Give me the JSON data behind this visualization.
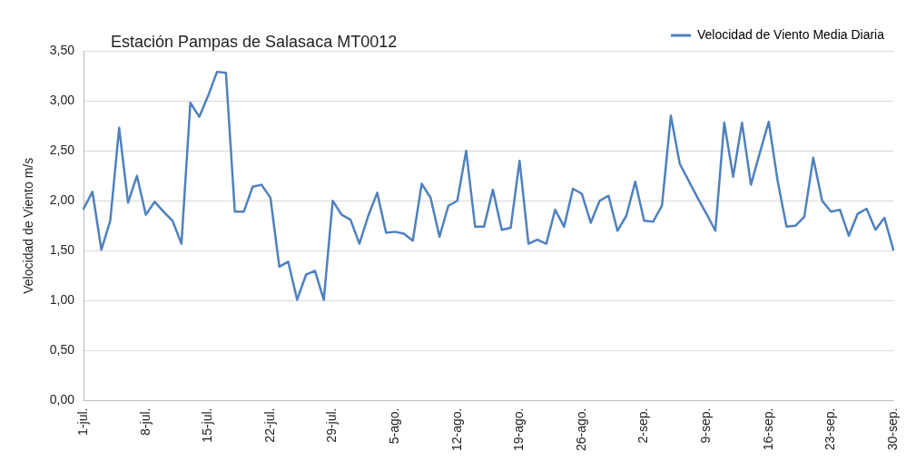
{
  "chart_data": {
    "type": "line",
    "title": "Estación Pampas de Salasaca MT0012",
    "ylabel": "Velocidad de Viento m/s",
    "categories": [
      "1-jul.",
      null,
      null,
      null,
      null,
      null,
      null,
      "8-jul.",
      null,
      null,
      null,
      null,
      null,
      null,
      "15-jul.",
      null,
      null,
      null,
      null,
      null,
      null,
      "22-jul.",
      null,
      null,
      null,
      null,
      null,
      null,
      "29-jul.",
      null,
      null,
      null,
      null,
      null,
      null,
      "5-ago.",
      null,
      null,
      null,
      null,
      null,
      null,
      "12-ago.",
      null,
      null,
      null,
      null,
      null,
      null,
      "19-ago.",
      null,
      null,
      null,
      null,
      null,
      null,
      "26-ago.",
      null,
      null,
      null,
      null,
      null,
      null,
      "2-sep.",
      null,
      null,
      null,
      null,
      null,
      null,
      "9-sep.",
      null,
      null,
      null,
      null,
      null,
      null,
      "16-sep.",
      null,
      null,
      null,
      null,
      null,
      null,
      "23-sep.",
      null,
      null,
      null,
      null,
      null,
      null,
      "30-sep."
    ],
    "series": [
      {
        "name": "Velocidad de Viento Media Diaria",
        "color": "#4f81bd",
        "values": [
          1.92,
          2.09,
          1.51,
          1.8,
          2.73,
          1.98,
          2.25,
          1.86,
          1.99,
          1.89,
          1.8,
          1.57,
          2.98,
          2.84,
          3.05,
          3.29,
          3.28,
          1.89,
          1.89,
          2.14,
          2.16,
          2.03,
          1.34,
          1.39,
          1.01,
          1.26,
          1.3,
          1.01,
          2.0,
          1.86,
          1.81,
          1.57,
          1.85,
          2.08,
          1.68,
          1.69,
          1.67,
          1.6,
          2.17,
          2.03,
          1.64,
          1.95,
          2.0,
          2.5,
          1.74,
          1.74,
          2.11,
          1.71,
          1.73,
          2.4,
          1.57,
          1.61,
          1.57,
          1.91,
          1.74,
          2.12,
          2.07,
          1.78,
          2.0,
          2.05,
          1.7,
          1.85,
          2.19,
          1.8,
          1.79,
          1.95,
          2.85,
          2.37,
          2.2,
          2.03,
          1.87,
          1.7,
          2.78,
          2.24,
          2.78,
          2.16,
          2.48,
          2.79,
          2.2,
          1.74,
          1.75,
          1.84,
          2.43,
          2.0,
          1.89,
          1.91,
          1.65,
          1.87,
          1.92,
          1.71,
          1.83,
          1.51
        ]
      }
    ],
    "ylim": [
      0,
      3.5
    ],
    "yticks": [
      {
        "value": 0,
        "label": "0,00"
      },
      {
        "value": 0.5,
        "label": "0,50"
      },
      {
        "value": 1,
        "label": "1,00"
      },
      {
        "value": 1.5,
        "label": "1,50"
      },
      {
        "value": 2,
        "label": "2,00"
      },
      {
        "value": 2.5,
        "label": "2,50"
      },
      {
        "value": 3,
        "label": "3,00"
      },
      {
        "value": 3.5,
        "label": "3,50"
      }
    ],
    "grid": "y",
    "legend": "top right",
    "marker": "none",
    "line_style": "solid"
  }
}
